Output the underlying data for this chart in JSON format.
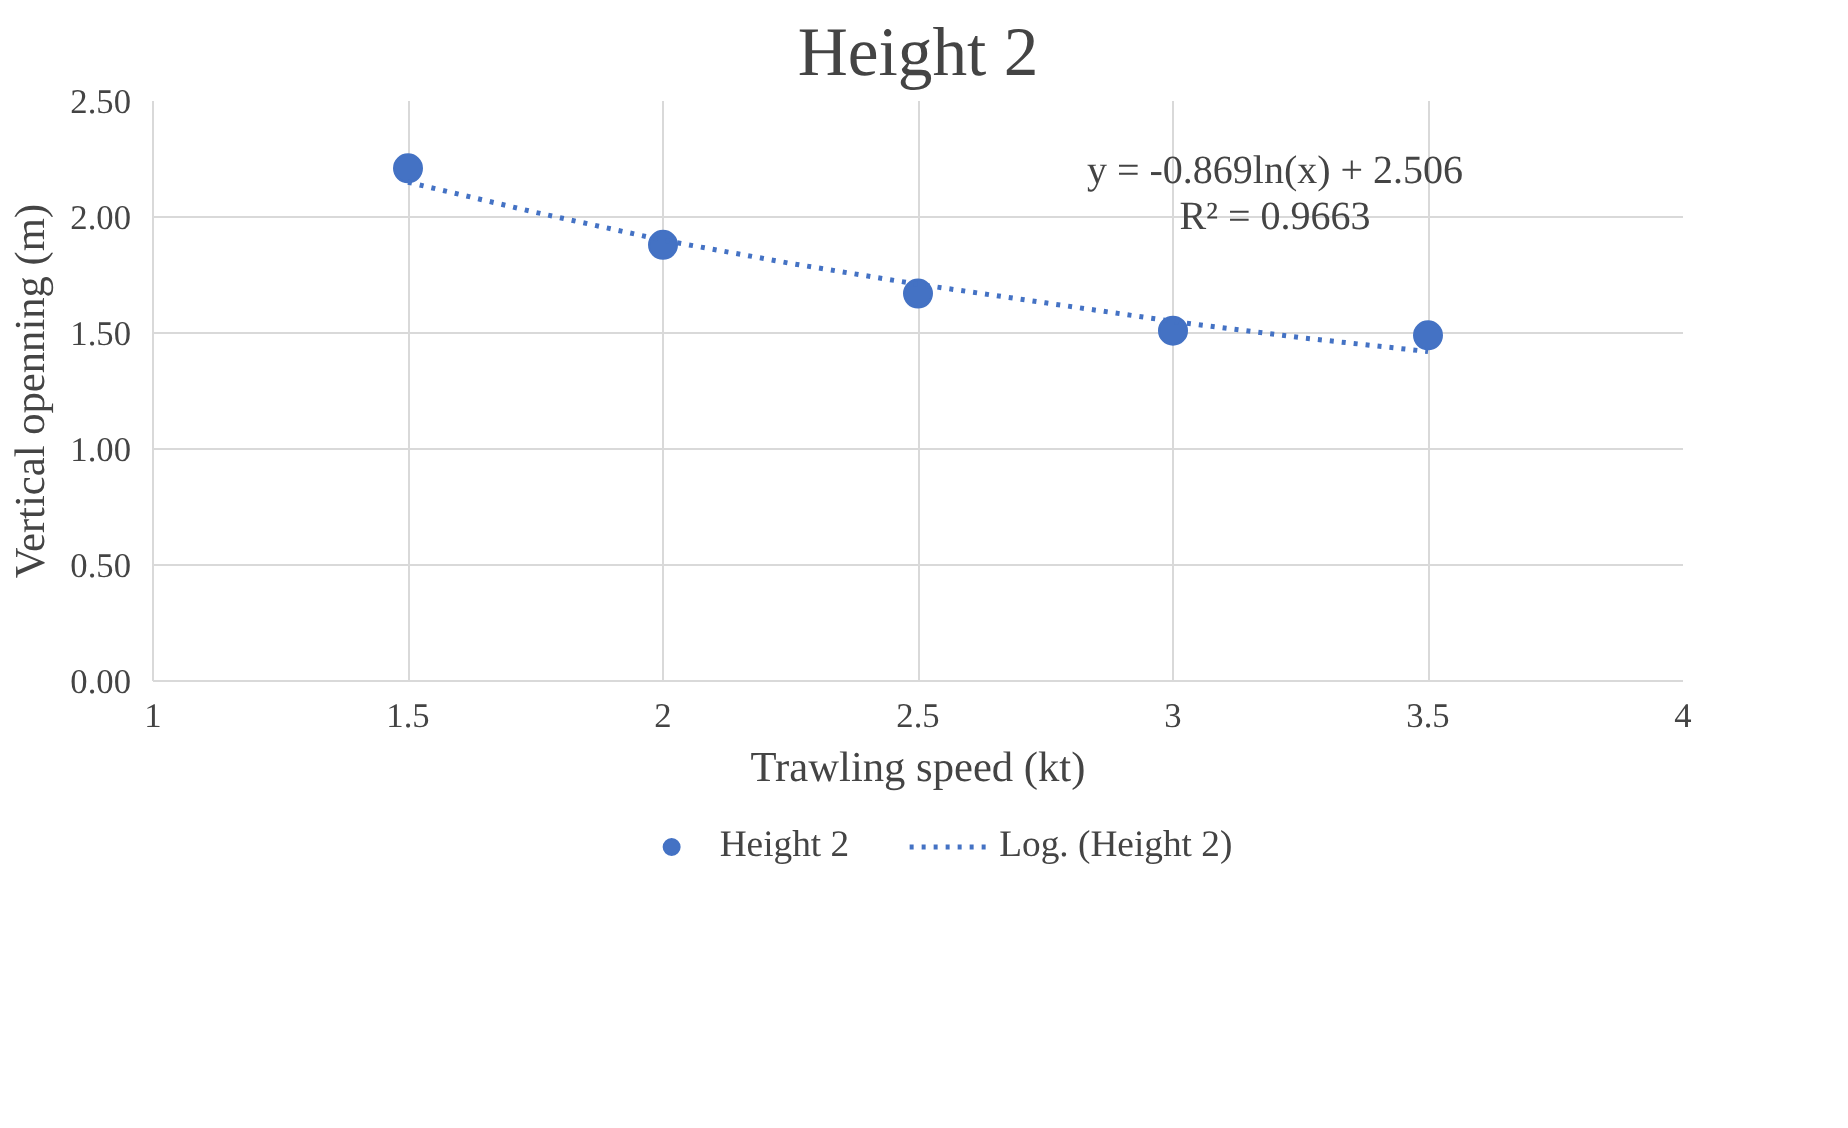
{
  "chart_data": {
    "type": "scatter",
    "title": "Height 2",
    "xlabel": "Trawling speed (kt)",
    "ylabel": "Vertical openning (m)",
    "x": [
      1.5,
      2,
      2.5,
      3,
      3.5
    ],
    "series": [
      {
        "name": "Height 2",
        "color": "#4472c4",
        "values": [
          2.21,
          1.88,
          1.67,
          1.51,
          1.49
        ]
      },
      {
        "name": "Log. (Height 2)",
        "type": "line",
        "color": "#4472c4",
        "line_style": "dotted",
        "marker": "none",
        "x": [
          1.5,
          1.75,
          2,
          2.25,
          2.5,
          2.75,
          3,
          3.25,
          3.5
        ],
        "values": [
          2.15,
          2.02,
          1.9,
          1.8,
          1.71,
          1.63,
          1.55,
          1.48,
          1.42
        ]
      }
    ],
    "annotations": [
      "y = -0.869ln(x) + 2.506",
      "R² = 0.9663"
    ],
    "xlim": [
      1,
      4
    ],
    "xticks": [
      1,
      1.5,
      2,
      2.5,
      3,
      3.5,
      4
    ],
    "ylim": [
      0,
      2.5
    ],
    "yticks": [
      {
        "value": 0,
        "label": "0.00"
      },
      {
        "value": 0.5,
        "label": "0.50"
      },
      {
        "value": 1,
        "label": "1.00"
      },
      {
        "value": 1.5,
        "label": "1.50"
      },
      {
        "value": 2,
        "label": "2.00"
      },
      {
        "value": 2.5,
        "label": "2.50"
      }
    ],
    "grid": true,
    "legend": "bottom"
  }
}
